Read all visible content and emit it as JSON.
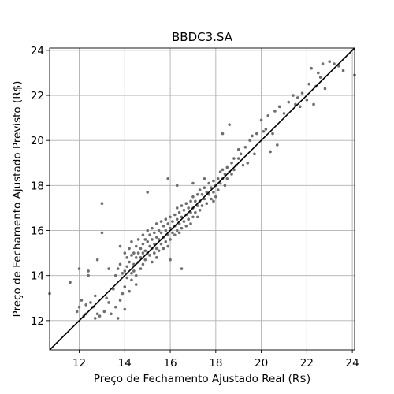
{
  "chart_data": {
    "type": "scatter",
    "title": "BBDC3.SA",
    "xlabel": "Preço de Fechamento Ajustado Real (R$)",
    "ylabel": "Preço de Fechamento Ajustado Previsto (R$)",
    "xlim": [
      10.7,
      24.1
    ],
    "ylim": [
      10.7,
      24.1
    ],
    "xticks": [
      12,
      14,
      16,
      18,
      20,
      22,
      24
    ],
    "yticks": [
      12,
      14,
      16,
      18,
      20,
      22,
      24
    ],
    "grid": true,
    "point_color": "#6e6e6e",
    "reference_line": {
      "from": [
        10.7,
        10.7
      ],
      "to": [
        24.1,
        24.1
      ],
      "color": "#000000"
    },
    "series": [
      {
        "points": [
          [
            10.7,
            13.2
          ],
          [
            11.6,
            13.7
          ],
          [
            11.9,
            12.4
          ],
          [
            12.0,
            12.6
          ],
          [
            12.0,
            14.3
          ],
          [
            12.1,
            12.9
          ],
          [
            12.2,
            12.2
          ],
          [
            12.3,
            12.3
          ],
          [
            12.3,
            12.7
          ],
          [
            12.4,
            14.0
          ],
          [
            12.4,
            14.2
          ],
          [
            12.5,
            12.8
          ],
          [
            12.6,
            12.6
          ],
          [
            12.7,
            13.1
          ],
          [
            12.7,
            12.1
          ],
          [
            12.8,
            14.7
          ],
          [
            12.8,
            12.3
          ],
          [
            12.9,
            12.2
          ],
          [
            13.0,
            17.2
          ],
          [
            13.0,
            15.9
          ],
          [
            13.1,
            12.4
          ],
          [
            13.2,
            13.0
          ],
          [
            13.3,
            14.3
          ],
          [
            13.3,
            12.8
          ],
          [
            13.4,
            12.3
          ],
          [
            13.5,
            13.4
          ],
          [
            13.6,
            14.0
          ],
          [
            13.6,
            12.6
          ],
          [
            13.7,
            14.3
          ],
          [
            13.7,
            12.1
          ],
          [
            13.8,
            15.3
          ],
          [
            13.8,
            14.5
          ],
          [
            13.8,
            12.9
          ],
          [
            13.9,
            14.1
          ],
          [
            13.9,
            13.2
          ],
          [
            14.0,
            15.0
          ],
          [
            14.0,
            14.2
          ],
          [
            14.0,
            13.5
          ],
          [
            14.0,
            12.5
          ],
          [
            14.1,
            14.8
          ],
          [
            14.1,
            14.4
          ],
          [
            14.1,
            13.9
          ],
          [
            14.2,
            15.2
          ],
          [
            14.2,
            14.6
          ],
          [
            14.2,
            13.3
          ],
          [
            14.3,
            15.5
          ],
          [
            14.3,
            14.9
          ],
          [
            14.3,
            14.1
          ],
          [
            14.3,
            13.8
          ],
          [
            14.4,
            15.0
          ],
          [
            14.4,
            14.5
          ],
          [
            14.4,
            14.2
          ],
          [
            14.5,
            15.3
          ],
          [
            14.5,
            14.8
          ],
          [
            14.5,
            14.0
          ],
          [
            14.5,
            13.6
          ],
          [
            14.6,
            15.6
          ],
          [
            14.6,
            15.0
          ],
          [
            14.6,
            14.6
          ],
          [
            14.7,
            15.2
          ],
          [
            14.7,
            14.8
          ],
          [
            14.7,
            14.3
          ],
          [
            14.8,
            15.8
          ],
          [
            14.8,
            15.4
          ],
          [
            14.8,
            15.0
          ],
          [
            14.8,
            14.5
          ],
          [
            14.9,
            15.6
          ],
          [
            14.9,
            15.1
          ],
          [
            14.9,
            14.7
          ],
          [
            15.0,
            16.0
          ],
          [
            15.0,
            15.5
          ],
          [
            15.0,
            15.0
          ],
          [
            15.0,
            17.7
          ],
          [
            15.1,
            15.8
          ],
          [
            15.1,
            15.3
          ],
          [
            15.1,
            14.9
          ],
          [
            15.2,
            16.1
          ],
          [
            15.2,
            15.6
          ],
          [
            15.2,
            15.2
          ],
          [
            15.2,
            14.6
          ],
          [
            15.3,
            15.9
          ],
          [
            15.3,
            15.4
          ],
          [
            15.3,
            15.0
          ],
          [
            15.4,
            16.3
          ],
          [
            15.4,
            15.7
          ],
          [
            15.4,
            15.2
          ],
          [
            15.4,
            14.8
          ],
          [
            15.5,
            16.0
          ],
          [
            15.5,
            15.6
          ],
          [
            15.5,
            15.1
          ],
          [
            15.6,
            16.4
          ],
          [
            15.6,
            15.9
          ],
          [
            15.6,
            15.4
          ],
          [
            15.7,
            16.2
          ],
          [
            15.7,
            15.7
          ],
          [
            15.7,
            15.2
          ],
          [
            15.8,
            16.5
          ],
          [
            15.8,
            16.0
          ],
          [
            15.8,
            15.5
          ],
          [
            15.9,
            16.3
          ],
          [
            15.9,
            15.8
          ],
          [
            15.9,
            15.3
          ],
          [
            15.9,
            18.3
          ],
          [
            16.0,
            16.6
          ],
          [
            16.0,
            16.1
          ],
          [
            16.0,
            15.6
          ],
          [
            16.0,
            14.7
          ],
          [
            16.1,
            16.4
          ],
          [
            16.1,
            15.9
          ],
          [
            16.2,
            16.7
          ],
          [
            16.2,
            16.2
          ],
          [
            16.2,
            15.8
          ],
          [
            16.3,
            17.0
          ],
          [
            16.3,
            16.5
          ],
          [
            16.3,
            16.0
          ],
          [
            16.3,
            18.0
          ],
          [
            16.4,
            16.8
          ],
          [
            16.4,
            16.3
          ],
          [
            16.4,
            15.9
          ],
          [
            16.5,
            17.1
          ],
          [
            16.5,
            16.6
          ],
          [
            16.5,
            16.1
          ],
          [
            16.5,
            14.3
          ],
          [
            16.6,
            16.9
          ],
          [
            16.6,
            16.4
          ],
          [
            16.7,
            17.2
          ],
          [
            16.7,
            16.7
          ],
          [
            16.7,
            16.2
          ],
          [
            16.8,
            17.0
          ],
          [
            16.8,
            16.5
          ],
          [
            16.9,
            17.3
          ],
          [
            16.9,
            16.8
          ],
          [
            16.9,
            16.3
          ],
          [
            17.0,
            17.5
          ],
          [
            17.0,
            17.0
          ],
          [
            17.0,
            16.6
          ],
          [
            17.0,
            18.1
          ],
          [
            17.1,
            17.3
          ],
          [
            17.1,
            16.8
          ],
          [
            17.2,
            17.6
          ],
          [
            17.2,
            17.1
          ],
          [
            17.2,
            16.6
          ],
          [
            17.3,
            17.8
          ],
          [
            17.3,
            17.3
          ],
          [
            17.3,
            16.9
          ],
          [
            17.4,
            17.6
          ],
          [
            17.4,
            17.1
          ],
          [
            17.5,
            17.9
          ],
          [
            17.5,
            17.4
          ],
          [
            17.5,
            18.3
          ],
          [
            17.6,
            17.7
          ],
          [
            17.6,
            17.2
          ],
          [
            17.7,
            18.1
          ],
          [
            17.7,
            17.6
          ],
          [
            17.8,
            17.9
          ],
          [
            17.8,
            17.4
          ],
          [
            17.9,
            18.2
          ],
          [
            17.9,
            17.7
          ],
          [
            17.9,
            17.3
          ],
          [
            18.0,
            18.0
          ],
          [
            18.0,
            17.5
          ],
          [
            18.1,
            18.3
          ],
          [
            18.1,
            17.8
          ],
          [
            18.2,
            18.6
          ],
          [
            18.2,
            18.1
          ],
          [
            18.3,
            18.7
          ],
          [
            18.3,
            18.3
          ],
          [
            18.3,
            20.3
          ],
          [
            18.4,
            18.5
          ],
          [
            18.4,
            18.0
          ],
          [
            18.5,
            18.8
          ],
          [
            18.5,
            18.3
          ],
          [
            18.6,
            18.6
          ],
          [
            18.6,
            20.7
          ],
          [
            18.7,
            19.0
          ],
          [
            18.7,
            18.5
          ],
          [
            18.8,
            19.2
          ],
          [
            18.8,
            18.7
          ],
          [
            18.9,
            18.9
          ],
          [
            19.0,
            19.6
          ],
          [
            19.0,
            19.2
          ],
          [
            19.1,
            19.4
          ],
          [
            19.2,
            18.9
          ],
          [
            19.3,
            19.7
          ],
          [
            19.4,
            19.0
          ],
          [
            19.5,
            20.0
          ],
          [
            19.6,
            20.2
          ],
          [
            19.7,
            19.4
          ],
          [
            19.8,
            20.3
          ],
          [
            20.0,
            20.9
          ],
          [
            20.1,
            20.4
          ],
          [
            20.2,
            20.5
          ],
          [
            20.3,
            21.1
          ],
          [
            20.4,
            19.5
          ],
          [
            20.5,
            20.3
          ],
          [
            20.6,
            21.3
          ],
          [
            20.7,
            19.8
          ],
          [
            20.8,
            21.5
          ],
          [
            21.0,
            21.2
          ],
          [
            21.2,
            21.7
          ],
          [
            21.4,
            22.0
          ],
          [
            21.5,
            21.6
          ],
          [
            21.6,
            21.9
          ],
          [
            21.7,
            21.5
          ],
          [
            21.8,
            22.1
          ],
          [
            22.0,
            21.8
          ],
          [
            22.1,
            22.5
          ],
          [
            22.2,
            23.2
          ],
          [
            22.3,
            21.6
          ],
          [
            22.4,
            22.4
          ],
          [
            22.5,
            23.0
          ],
          [
            22.6,
            22.8
          ],
          [
            22.7,
            23.4
          ],
          [
            22.8,
            22.3
          ],
          [
            23.0,
            23.5
          ],
          [
            23.2,
            23.4
          ],
          [
            23.4,
            23.3
          ],
          [
            23.6,
            23.1
          ],
          [
            24.1,
            22.9
          ]
        ]
      }
    ]
  }
}
